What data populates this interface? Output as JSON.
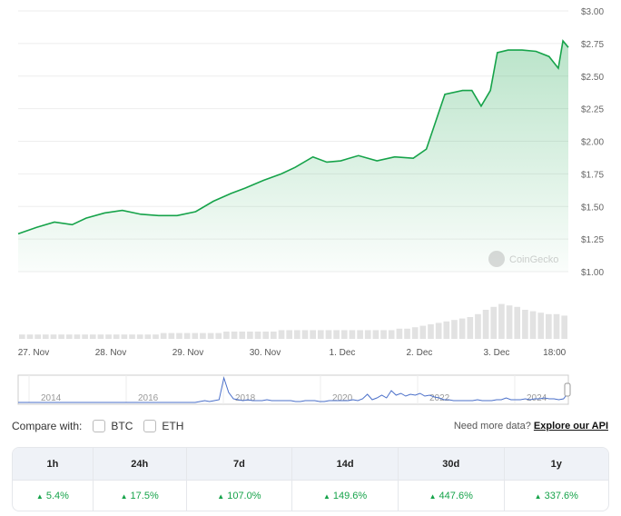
{
  "chart_data": {
    "type": "area",
    "y_axis": {
      "ticks": [
        "$3.00",
        "$2.75",
        "$2.50",
        "$2.25",
        "$2.00",
        "$1.75",
        "$1.50",
        "$1.25",
        "$1.00"
      ],
      "values": [
        3,
        2.75,
        2.5,
        2.25,
        2,
        1.75,
        1.5,
        1.25,
        1
      ],
      "ylim": [
        1,
        3
      ]
    },
    "x_axis": {
      "ticks": [
        "27. Nov",
        "28. Nov",
        "29. Nov",
        "30. Nov",
        "1. Dec",
        "2. Dec",
        "3. Dec",
        "18:00"
      ],
      "tick_days": [
        0,
        1,
        2,
        3,
        4,
        5,
        6,
        6.75
      ],
      "xlim": [
        -0.2,
        6.93
      ]
    },
    "series": [
      {
        "name": "price",
        "color": "#16a34a",
        "x": [
          -0.2,
          0.04,
          0.27,
          0.5,
          0.68,
          0.92,
          1.15,
          1.39,
          1.62,
          1.86,
          2.1,
          2.33,
          2.56,
          2.74,
          2.98,
          3.21,
          3.39,
          3.62,
          3.8,
          3.98,
          4.21,
          4.45,
          4.68,
          4.92,
          5.09,
          5.21,
          5.33,
          5.56,
          5.68,
          5.8,
          5.92,
          6.01,
          6.15,
          6.33,
          6.51,
          6.68,
          6.8,
          6.86,
          6.93
        ],
        "values": [
          1.29,
          1.34,
          1.38,
          1.36,
          1.41,
          1.45,
          1.47,
          1.44,
          1.43,
          1.43,
          1.46,
          1.54,
          1.6,
          1.64,
          1.7,
          1.75,
          1.8,
          1.88,
          1.84,
          1.85,
          1.89,
          1.85,
          1.88,
          1.87,
          1.94,
          2.15,
          2.36,
          2.39,
          2.39,
          2.27,
          2.39,
          2.68,
          2.7,
          2.7,
          2.69,
          2.65,
          2.56,
          2.77,
          2.72
        ]
      }
    ],
    "volume": [
      3,
      3,
      3,
      3,
      3,
      3,
      3,
      3,
      3,
      3,
      3,
      3,
      3,
      3,
      3,
      3,
      3,
      3,
      4,
      4,
      4,
      4,
      4,
      4,
      4,
      4,
      5,
      5,
      5,
      5,
      5,
      5,
      5,
      6,
      6,
      6,
      6,
      6,
      6,
      6,
      6,
      6,
      6,
      6,
      6,
      6,
      6,
      6,
      7,
      7,
      8,
      9,
      10,
      11,
      12,
      13,
      14,
      15,
      17,
      20,
      22,
      24,
      23,
      22,
      20,
      19,
      18,
      17,
      17,
      16
    ],
    "navigator": {
      "ticks": [
        "2014",
        "2016",
        "2018",
        "2020",
        "2022",
        "2024"
      ],
      "values": [
        1,
        1,
        1,
        1,
        1,
        1,
        1,
        1,
        1,
        1,
        1,
        1,
        1,
        1,
        1,
        1,
        1,
        1,
        1,
        1,
        1,
        1,
        1,
        1,
        1,
        1,
        1,
        1,
        1,
        1,
        1,
        1,
        1,
        1,
        1,
        1,
        1,
        1,
        2,
        3,
        2,
        3,
        4,
        28,
        12,
        5,
        4,
        3,
        4,
        3,
        3,
        3,
        4,
        3,
        3,
        3,
        3,
        3,
        2,
        2,
        3,
        3,
        3,
        2,
        2,
        3,
        3,
        3,
        3,
        3,
        4,
        3,
        5,
        10,
        4,
        6,
        9,
        6,
        14,
        9,
        11,
        8,
        10,
        9,
        11,
        8,
        9,
        7,
        6,
        4,
        4,
        3,
        3,
        3,
        3,
        3,
        4,
        3,
        3,
        3,
        4,
        4,
        6,
        4,
        4,
        4,
        5,
        4,
        5,
        5,
        6,
        5,
        5,
        4,
        5,
        12
      ]
    },
    "watermark": "CoinGecko"
  },
  "compare": {
    "label": "Compare with:",
    "options": [
      "BTC",
      "ETH"
    ]
  },
  "api": {
    "text": "Need more data?",
    "link": "Explore our API"
  },
  "performance": {
    "headers": [
      "1h",
      "24h",
      "7d",
      "14d",
      "30d",
      "1y"
    ],
    "values": [
      "5.4%",
      "17.5%",
      "107.0%",
      "149.6%",
      "447.6%",
      "337.6%"
    ],
    "color": "#16a34a"
  }
}
